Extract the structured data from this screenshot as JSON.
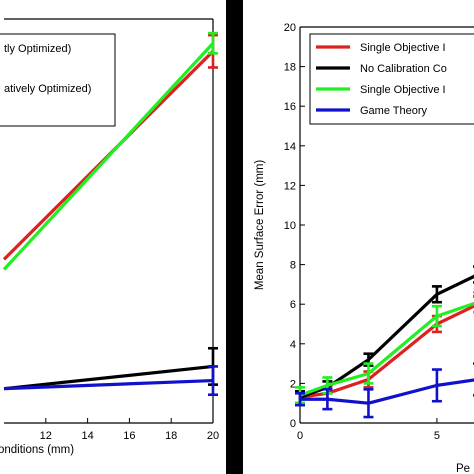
{
  "chart_data": [
    {
      "type": "line",
      "title": "",
      "xlabel": "onditions (mm)",
      "ylabel": "",
      "x_ticks": [
        12,
        14,
        16,
        18,
        20
      ],
      "xlim": [
        10,
        20
      ],
      "ylim": [
        0,
        20
      ],
      "legend": {
        "placement": "top-left",
        "entries": [
          "tly Optimized)",
          "atively Optimized)"
        ]
      },
      "series": [
        {
          "color": "#dd2020",
          "x": [
            10,
            20
          ],
          "y": [
            8.1,
            18.4
          ],
          "err": [
            0,
            0.8
          ]
        },
        {
          "color": "#22ee22",
          "x": [
            10,
            20
          ],
          "y": [
            7.6,
            18.8
          ],
          "err": [
            0,
            0.5
          ]
        },
        {
          "color": "#000000",
          "x": [
            10,
            20
          ],
          "y": [
            1.7,
            2.8
          ],
          "err": [
            0,
            0.9
          ]
        },
        {
          "color": "#1111cc",
          "x": [
            10,
            20
          ],
          "y": [
            1.7,
            2.1
          ],
          "err": [
            0,
            0.7
          ]
        }
      ]
    },
    {
      "type": "line",
      "title": "",
      "xlabel": "Pe",
      "ylabel": "Mean Surface Error (mm)",
      "x_ticks": [
        0,
        5
      ],
      "y_ticks": [
        0,
        2,
        4,
        6,
        8,
        10,
        12,
        14,
        16,
        18,
        20
      ],
      "xlim": [
        0,
        6.5
      ],
      "ylim": [
        0,
        20
      ],
      "legend": {
        "placement": "top-left",
        "entries": [
          "Single Objective I",
          "No Calibration Co",
          "Single Objective I",
          "Game Theory"
        ]
      },
      "series": [
        {
          "name": "Single Objective I",
          "color": "#dd2020",
          "x": [
            0,
            1,
            2.5,
            5,
            6.5
          ],
          "y": [
            1.3,
            1.5,
            2.2,
            5.0,
            6.0
          ],
          "err": [
            0.3,
            0.3,
            0.4,
            0.4,
            0.4
          ]
        },
        {
          "name": "No Calibration Co",
          "color": "#000000",
          "x": [
            0,
            1,
            2.5,
            5,
            6.5
          ],
          "y": [
            1.3,
            1.8,
            3.2,
            6.5,
            7.5
          ],
          "err": [
            0.3,
            0.3,
            0.3,
            0.4,
            0.4
          ]
        },
        {
          "name": "Single Objective I",
          "color": "#22ee22",
          "x": [
            0,
            1,
            2.5,
            5,
            6.5
          ],
          "y": [
            1.4,
            1.9,
            2.5,
            5.4,
            6.1
          ],
          "err": [
            0.4,
            0.4,
            0.5,
            0.5,
            0.5
          ]
        },
        {
          "name": "Game Theory",
          "color": "#1111cc",
          "x": [
            0,
            1,
            2.5,
            5,
            6.5
          ],
          "y": [
            1.2,
            1.2,
            1.0,
            1.9,
            2.2
          ],
          "err": [
            0.3,
            0.5,
            0.7,
            0.8,
            0.8
          ]
        }
      ]
    }
  ]
}
